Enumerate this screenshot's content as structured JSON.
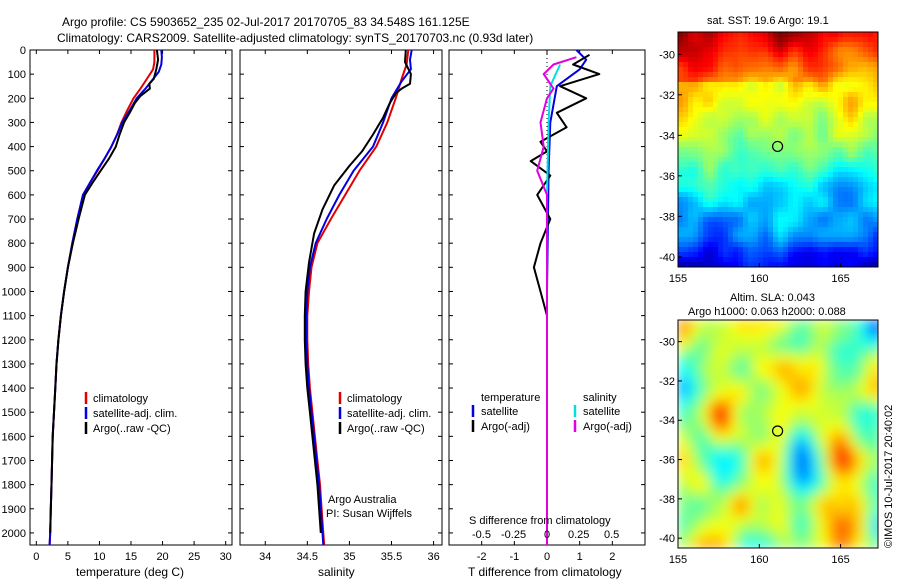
{
  "header": {
    "line1": "Argo profile: CS 5903652_235 02-Jul-2017 20170705_83 34.548S 161.125E",
    "line2": "Climatology: CARS2009. Satellite-adjusted climatology: synTS_20170703.nc (0.93d later)"
  },
  "chart_data": [
    {
      "type": "line",
      "name": "temperature-panel",
      "xlabel": "temperature (deg C)",
      "xlim": [
        -1,
        31
      ],
      "xticks": [
        0,
        5,
        10,
        15,
        20,
        25,
        30
      ],
      "ylim": [
        2050,
        0
      ],
      "yticks": [
        0,
        100,
        200,
        300,
        400,
        500,
        600,
        700,
        800,
        900,
        1000,
        1100,
        1200,
        1300,
        1400,
        1500,
        1600,
        1700,
        1800,
        1900,
        2000
      ],
      "legend": [
        "climatology",
        "satellite-adj. clim.",
        "Argo(..raw -QC)"
      ],
      "series": [
        {
          "name": "climatology",
          "color": "#e00000",
          "points": [
            [
              18.7,
              0
            ],
            [
              18.7,
              50
            ],
            [
              18.5,
              80
            ],
            [
              17.5,
              120
            ],
            [
              16.5,
              160
            ],
            [
              15.4,
              200
            ],
            [
              14.4,
              250
            ],
            [
              13.5,
              300
            ],
            [
              12.8,
              350
            ],
            [
              11.9,
              400
            ],
            [
              10.8,
              450
            ],
            [
              9.7,
              500
            ],
            [
              8.5,
              550
            ],
            [
              7.4,
              600
            ],
            [
              6.5,
              700
            ],
            [
              5.7,
              800
            ],
            [
              5.0,
              900
            ],
            [
              4.4,
              1000
            ],
            [
              3.9,
              1100
            ],
            [
              3.5,
              1200
            ],
            [
              3.2,
              1300
            ],
            [
              3.0,
              1400
            ],
            [
              2.8,
              1500
            ],
            [
              2.6,
              1600
            ],
            [
              2.5,
              1700
            ],
            [
              2.4,
              1800
            ],
            [
              2.3,
              1900
            ],
            [
              2.2,
              2000
            ],
            [
              2.1,
              2050
            ]
          ]
        },
        {
          "name": "satellite-adj. clim.",
          "color": "#0000e0",
          "points": [
            [
              19.8,
              0
            ],
            [
              19.9,
              30
            ],
            [
              19.8,
              60
            ],
            [
              19.4,
              90
            ],
            [
              18.5,
              120
            ],
            [
              17.3,
              160
            ],
            [
              15.9,
              200
            ],
            [
              14.8,
              250
            ],
            [
              13.6,
              300
            ],
            [
              12.8,
              350
            ],
            [
              11.9,
              400
            ],
            [
              10.8,
              450
            ],
            [
              9.6,
              500
            ],
            [
              8.5,
              550
            ],
            [
              7.4,
              600
            ],
            [
              6.5,
              700
            ],
            [
              5.7,
              800
            ],
            [
              5.0,
              900
            ],
            [
              4.4,
              1000
            ],
            [
              3.9,
              1100
            ],
            [
              3.5,
              1200
            ],
            [
              3.2,
              1300
            ],
            [
              3.0,
              1400
            ],
            [
              2.8,
              1500
            ],
            [
              2.6,
              1600
            ],
            [
              2.5,
              1700
            ],
            [
              2.4,
              1800
            ],
            [
              2.3,
              1900
            ],
            [
              2.2,
              2000
            ],
            [
              2.1,
              2050
            ]
          ]
        },
        {
          "name": "Argo(..raw -QC)",
          "color": "#000000",
          "points": [
            [
              19.1,
              0
            ],
            [
              19.3,
              40
            ],
            [
              19.0,
              80
            ],
            [
              18.6,
              120
            ],
            [
              17.9,
              140
            ],
            [
              18.0,
              160
            ],
            [
              16.5,
              190
            ],
            [
              15.6,
              220
            ],
            [
              14.8,
              260
            ],
            [
              13.9,
              300
            ],
            [
              13.2,
              350
            ],
            [
              12.6,
              400
            ],
            [
              11.5,
              450
            ],
            [
              10.2,
              500
            ],
            [
              8.9,
              550
            ],
            [
              7.7,
              600
            ],
            [
              6.7,
              700
            ],
            [
              5.8,
              800
            ],
            [
              5.0,
              900
            ],
            [
              4.4,
              1000
            ],
            [
              3.9,
              1100
            ],
            [
              3.5,
              1200
            ],
            [
              3.2,
              1300
            ],
            [
              3.0,
              1400
            ],
            [
              2.8,
              1500
            ],
            [
              2.6,
              1600
            ],
            [
              2.5,
              1700
            ],
            [
              2.4,
              1800
            ],
            [
              2.3,
              1900
            ],
            [
              2.2,
              2000
            ]
          ]
        }
      ]
    },
    {
      "type": "line",
      "name": "salinity-panel",
      "xlabel": "salinity",
      "xlim": [
        33.7,
        36.1
      ],
      "xticks": [
        34,
        34.5,
        35,
        35.5,
        36
      ],
      "ylim": [
        2050,
        0
      ],
      "legend": [
        "climatology",
        "satellite-adj. clim.",
        "Argo(..raw -QC)"
      ],
      "annotation": [
        "Argo Australia",
        "PI: Susan Wijffels"
      ],
      "series": [
        {
          "name": "climatology",
          "color": "#e00000",
          "points": [
            [
              35.7,
              0
            ],
            [
              35.68,
              60
            ],
            [
              35.62,
              120
            ],
            [
              35.55,
              200
            ],
            [
              35.45,
              300
            ],
            [
              35.32,
              400
            ],
            [
              35.12,
              500
            ],
            [
              34.95,
              600
            ],
            [
              34.78,
              700
            ],
            [
              34.62,
              800
            ],
            [
              34.55,
              900
            ],
            [
              34.52,
              1000
            ],
            [
              34.5,
              1100
            ],
            [
              34.5,
              1200
            ],
            [
              34.51,
              1300
            ],
            [
              34.53,
              1400
            ],
            [
              34.56,
              1500
            ],
            [
              34.59,
              1600
            ],
            [
              34.62,
              1700
            ],
            [
              34.65,
              1800
            ],
            [
              34.67,
              1900
            ],
            [
              34.69,
              2000
            ],
            [
              34.7,
              2050
            ]
          ]
        },
        {
          "name": "satellite-adj. clim.",
          "color": "#0000e0",
          "points": [
            [
              35.74,
              0
            ],
            [
              35.72,
              40
            ],
            [
              35.73,
              80
            ],
            [
              35.62,
              130
            ],
            [
              35.5,
              200
            ],
            [
              35.4,
              300
            ],
            [
              35.28,
              400
            ],
            [
              35.05,
              500
            ],
            [
              34.88,
              600
            ],
            [
              34.73,
              700
            ],
            [
              34.6,
              800
            ],
            [
              34.53,
              900
            ],
            [
              34.5,
              1000
            ],
            [
              34.49,
              1100
            ],
            [
              34.49,
              1200
            ],
            [
              34.5,
              1300
            ],
            [
              34.52,
              1400
            ],
            [
              34.55,
              1500
            ],
            [
              34.58,
              1600
            ],
            [
              34.61,
              1700
            ],
            [
              34.64,
              1800
            ],
            [
              34.66,
              1900
            ],
            [
              34.68,
              2000
            ],
            [
              34.69,
              2050
            ]
          ]
        },
        {
          "name": "Argo(..raw -QC)",
          "color": "#000000",
          "points": [
            [
              35.67,
              0
            ],
            [
              35.66,
              50
            ],
            [
              35.73,
              100
            ],
            [
              35.72,
              140
            ],
            [
              35.62,
              160
            ],
            [
              35.55,
              180
            ],
            [
              35.48,
              220
            ],
            [
              35.4,
              280
            ],
            [
              35.28,
              350
            ],
            [
              35.15,
              420
            ],
            [
              35.0,
              480
            ],
            [
              34.82,
              560
            ],
            [
              34.68,
              660
            ],
            [
              34.58,
              760
            ],
            [
              34.52,
              880
            ],
            [
              34.48,
              1000
            ],
            [
              34.47,
              1100
            ],
            [
              34.47,
              1200
            ],
            [
              34.48,
              1300
            ],
            [
              34.5,
              1400
            ],
            [
              34.53,
              1500
            ],
            [
              34.56,
              1600
            ],
            [
              34.59,
              1700
            ],
            [
              34.62,
              1800
            ],
            [
              34.64,
              1900
            ],
            [
              34.66,
              2000
            ]
          ]
        }
      ]
    },
    {
      "type": "line",
      "name": "difference-panel",
      "xlabel_top": "S difference from climatology",
      "xlabel_bottom": "T difference from climatology",
      "xlim": [
        -3,
        3
      ],
      "xticks_bottom": [
        -2,
        -1,
        0,
        1,
        2
      ],
      "xticks_top_labels": [
        "-0.5",
        "-0.25",
        "0",
        "0.25",
        "0.5"
      ],
      "ylim": [
        2050,
        0
      ],
      "legend_temperature": {
        "title": "temperature",
        "items": [
          "satellite",
          "Argo(-adj)"
        ]
      },
      "legend_salinity": {
        "title": "salinity",
        "items": [
          "satellite",
          "Argo(-adj)"
        ]
      },
      "series": [
        {
          "name": "T satellite",
          "color": "#0000e0",
          "points": [
            [
              0.9,
              0
            ],
            [
              1.2,
              40
            ],
            [
              1.0,
              80
            ],
            [
              0.3,
              150
            ],
            [
              0.1,
              300
            ],
            [
              0.05,
              500
            ],
            [
              0.0,
              1000
            ],
            [
              0.0,
              2050
            ]
          ]
        },
        {
          "name": "T Argo(-adj)",
          "color": "#000000",
          "points": [
            [
              1.3,
              20
            ],
            [
              0.8,
              60
            ],
            [
              1.6,
              100
            ],
            [
              0.4,
              150
            ],
            [
              1.2,
              200
            ],
            [
              0.3,
              260
            ],
            [
              0.6,
              320
            ],
            [
              -0.2,
              380
            ],
            [
              0.0,
              420
            ],
            [
              -0.5,
              460
            ],
            [
              0.1,
              520
            ],
            [
              -0.3,
              600
            ],
            [
              0.1,
              700
            ],
            [
              -0.2,
              800
            ],
            [
              -0.4,
              900
            ],
            [
              -0.2,
              1000
            ],
            [
              0.0,
              1100
            ],
            [
              0.0,
              1500
            ],
            [
              0.0,
              2000
            ]
          ]
        },
        {
          "name": "S satellite",
          "color": "#00e0e0",
          "points": [
            [
              0.4,
              60
            ],
            [
              0.1,
              150
            ],
            [
              0.05,
              300
            ],
            [
              0.0,
              600
            ],
            [
              0.0,
              2050
            ]
          ]
        },
        {
          "name": "S Argo(-adj)",
          "color": "#e000e0",
          "points": [
            [
              0.9,
              30
            ],
            [
              0.2,
              60
            ],
            [
              -0.1,
              100
            ],
            [
              0.2,
              160
            ],
            [
              0.0,
              200
            ],
            [
              -0.2,
              300
            ],
            [
              -0.1,
              400
            ],
            [
              -0.3,
              500
            ],
            [
              0.0,
              600
            ],
            [
              0.0,
              1200
            ],
            [
              0.0,
              2050
            ]
          ]
        }
      ]
    },
    {
      "type": "heatmap",
      "name": "sst-map",
      "title": "sat. SST: 19.6  Argo: 19.1",
      "xlim": [
        155,
        167.3
      ],
      "ylim": [
        -40.5,
        -28.9
      ],
      "xticks": [
        155,
        160,
        165
      ],
      "yticks": [
        -30,
        -32,
        -34,
        -36,
        -38,
        -40
      ],
      "argo_position": [
        161.125,
        -34.548
      ]
    },
    {
      "type": "heatmap",
      "name": "sla-map",
      "title_lines": [
        "Altim. SLA: 0.043",
        "Argo h1000: 0.063 h2000: 0.088"
      ],
      "xlim": [
        155,
        167.3
      ],
      "ylim": [
        -40.5,
        -28.9
      ],
      "xticks": [
        155,
        160,
        165
      ],
      "yticks": [
        -30,
        -32,
        -34,
        -36,
        -38,
        -40
      ],
      "argo_position": [
        161.125,
        -34.548
      ]
    }
  ],
  "credit": "©IMOS 10-Jul-2017 20:40:02"
}
